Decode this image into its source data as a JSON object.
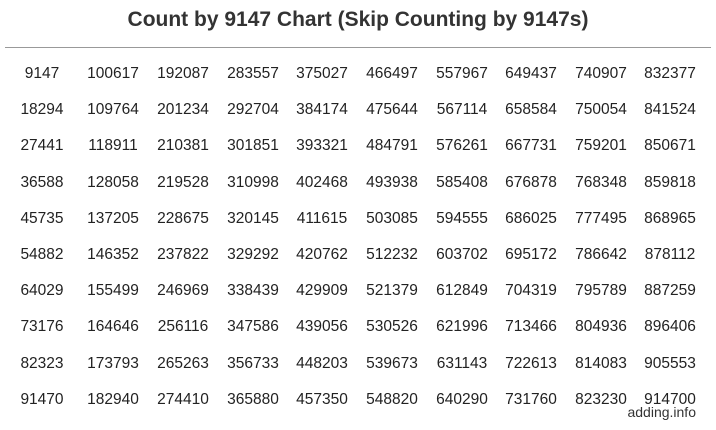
{
  "title": "Count by 9147 Chart (Skip Counting by 9147s)",
  "footer": "adding.info",
  "rows": [
    [
      "9147",
      "100617",
      "192087",
      "283557",
      "375027",
      "466497",
      "557967",
      "649437",
      "740907",
      "832377"
    ],
    [
      "18294",
      "109764",
      "201234",
      "292704",
      "384174",
      "475644",
      "567114",
      "658584",
      "750054",
      "841524"
    ],
    [
      "27441",
      "118911",
      "210381",
      "301851",
      "393321",
      "484791",
      "576261",
      "667731",
      "759201",
      "850671"
    ],
    [
      "36588",
      "128058",
      "219528",
      "310998",
      "402468",
      "493938",
      "585408",
      "676878",
      "768348",
      "859818"
    ],
    [
      "45735",
      "137205",
      "228675",
      "320145",
      "411615",
      "503085",
      "594555",
      "686025",
      "777495",
      "868965"
    ],
    [
      "54882",
      "146352",
      "237822",
      "329292",
      "420762",
      "512232",
      "603702",
      "695172",
      "786642",
      "878112"
    ],
    [
      "64029",
      "155499",
      "246969",
      "338439",
      "429909",
      "521379",
      "612849",
      "704319",
      "795789",
      "887259"
    ],
    [
      "73176",
      "164646",
      "256116",
      "347586",
      "439056",
      "530526",
      "621996",
      "713466",
      "804936",
      "896406"
    ],
    [
      "82323",
      "173793",
      "265263",
      "356733",
      "448203",
      "539673",
      "631143",
      "722613",
      "814083",
      "905553"
    ],
    [
      "91470",
      "182940",
      "274410",
      "365880",
      "457350",
      "548820",
      "640290",
      "731760",
      "823230",
      "914700"
    ]
  ]
}
